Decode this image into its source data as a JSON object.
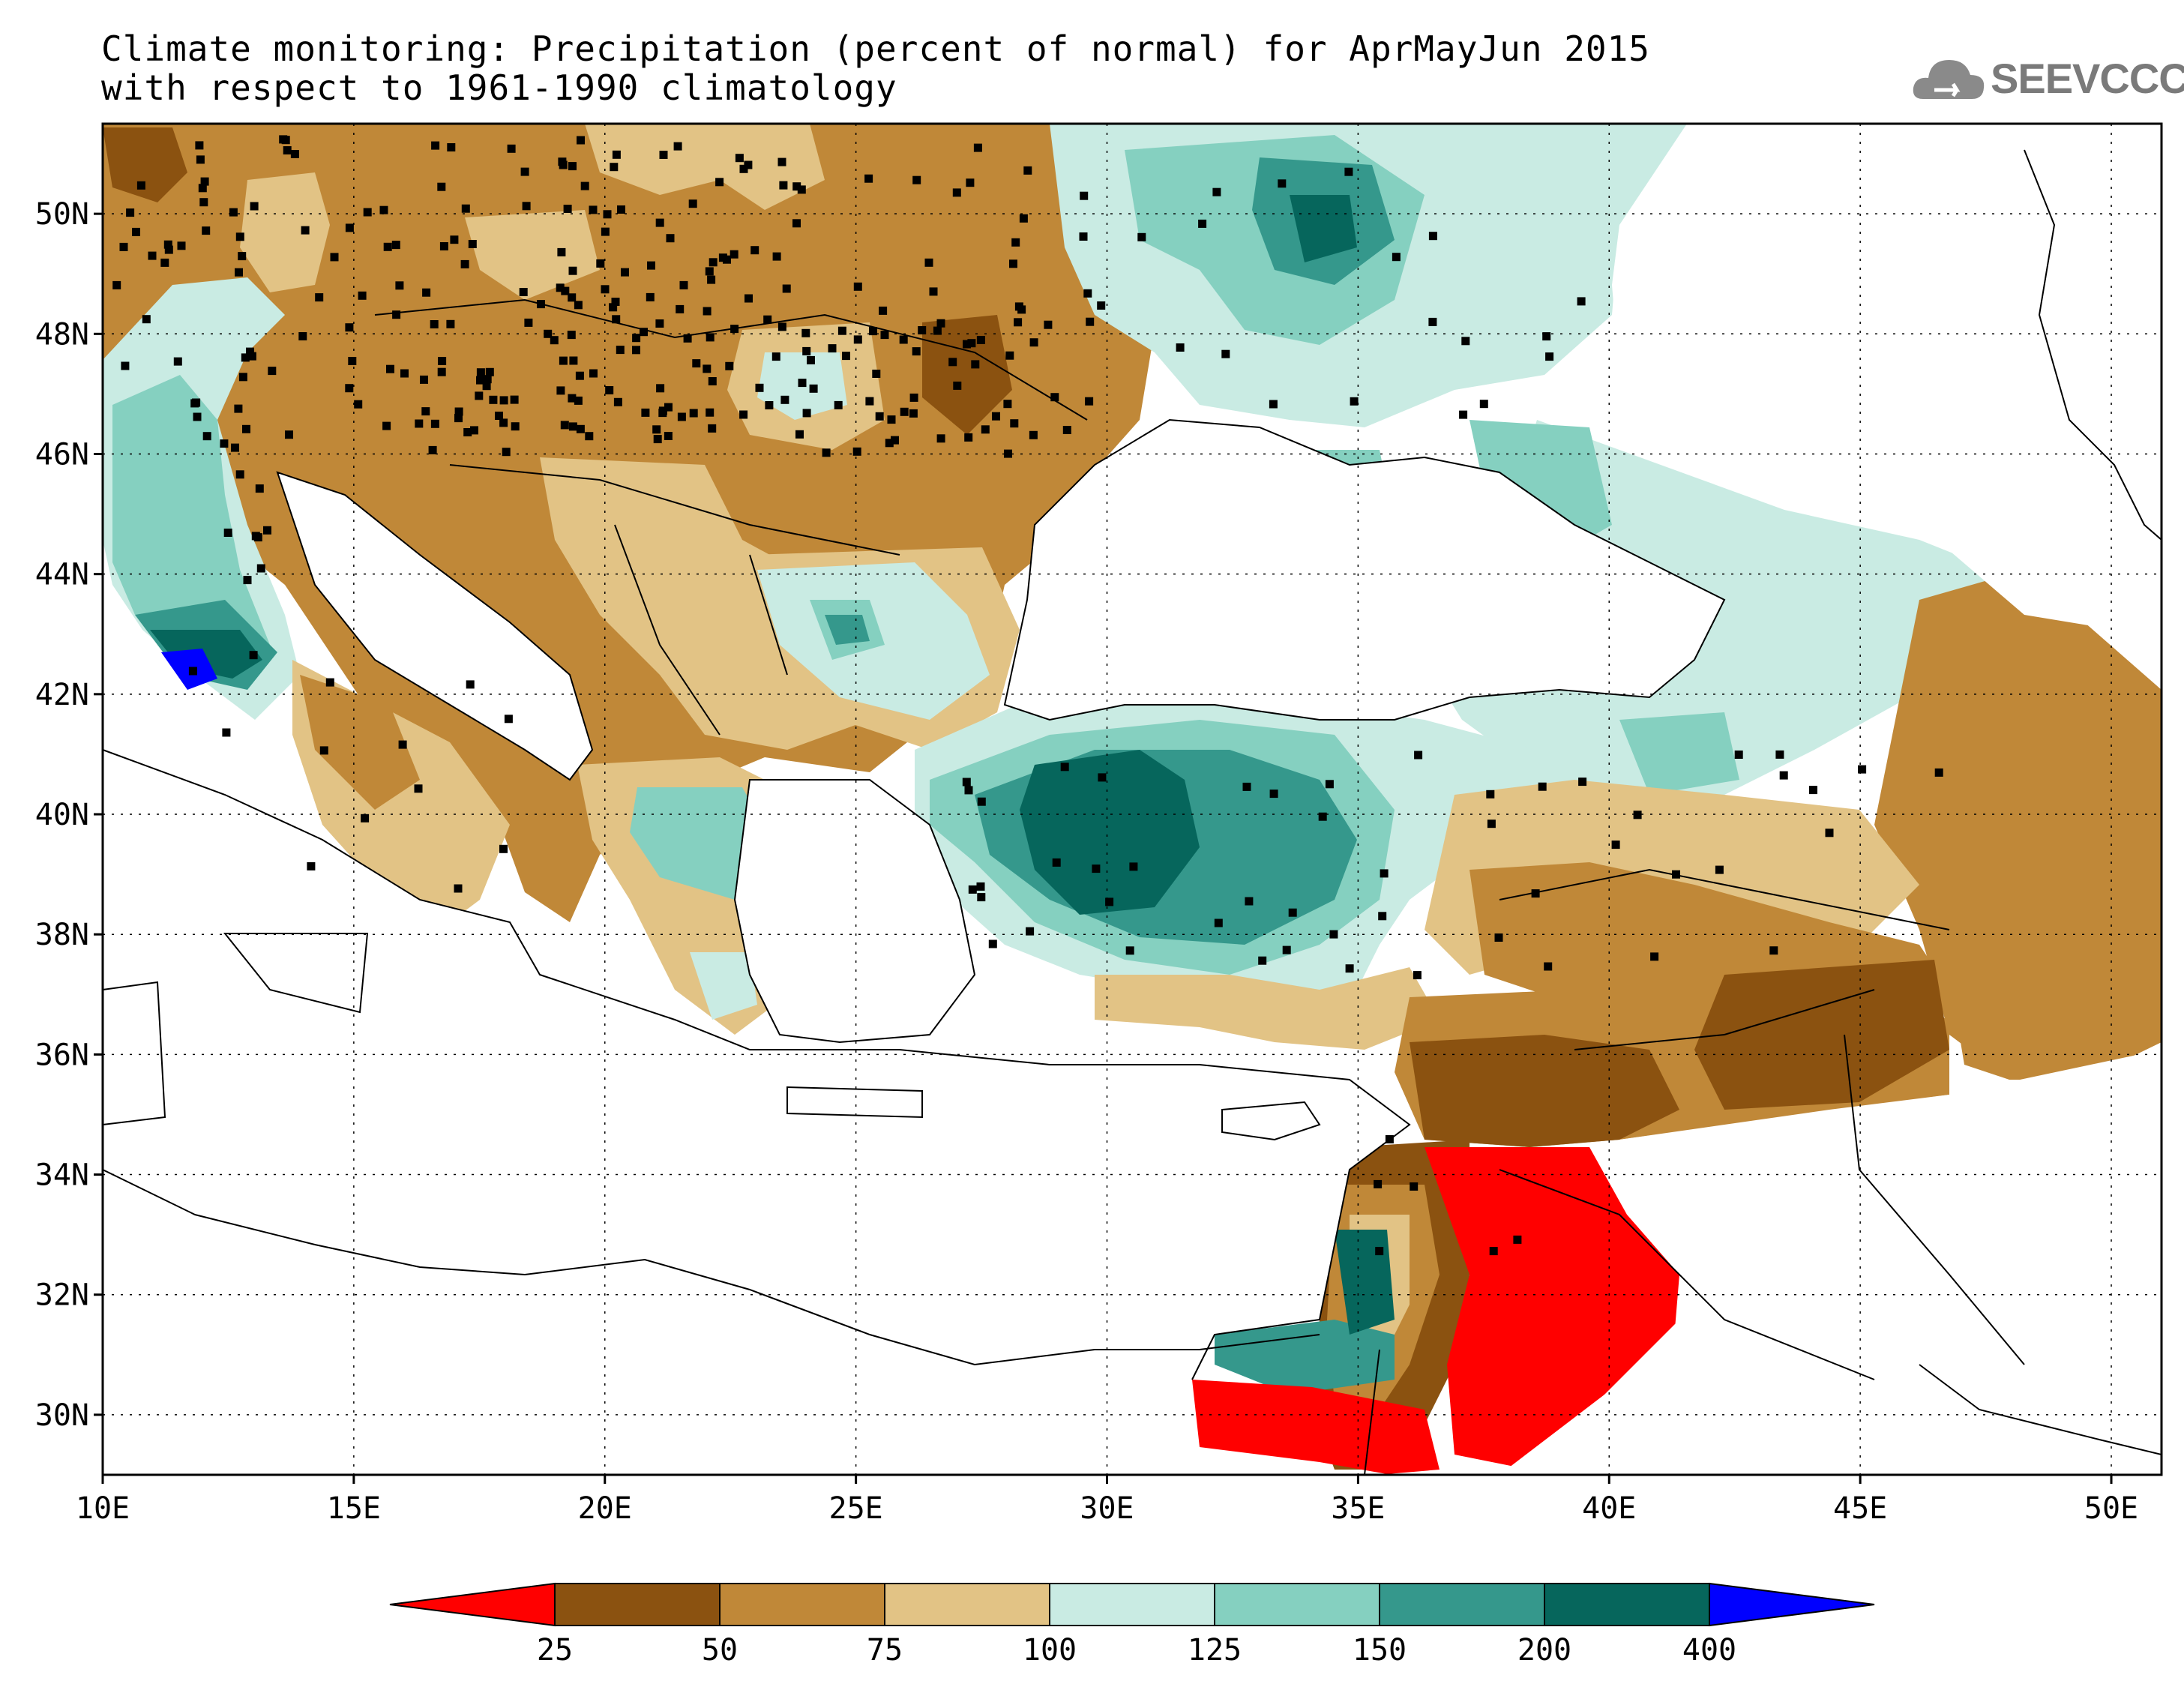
{
  "title": {
    "line1": "Climate monitoring: Precipitation (percent of normal) for AprMayJun 2015",
    "line2": "with respect to 1961-1990 climatology"
  },
  "logo": {
    "text": "SEEVCCC",
    "icon": "cloud-icon",
    "color": "#7a7a7a"
  },
  "map": {
    "lon_range": [
      10,
      51
    ],
    "lat_range": [
      29,
      51.5
    ],
    "lon_ticks": [
      "10E",
      "15E",
      "20E",
      "25E",
      "30E",
      "35E",
      "40E",
      "45E",
      "50E"
    ],
    "lat_ticks": [
      "30N",
      "32N",
      "34N",
      "36N",
      "38N",
      "40N",
      "42N",
      "44N",
      "46N",
      "48N",
      "50N"
    ],
    "grid": "dotted"
  },
  "legend": {
    "labels": [
      "25",
      "50",
      "75",
      "100",
      "125",
      "150",
      "200",
      "400"
    ],
    "colors": [
      "#ff0000",
      "#8b5210",
      "#c08838",
      "#e2c385",
      "#c9ebe3",
      "#85d0c0",
      "#35988c",
      "#06665c",
      "#0000ff"
    ]
  }
}
